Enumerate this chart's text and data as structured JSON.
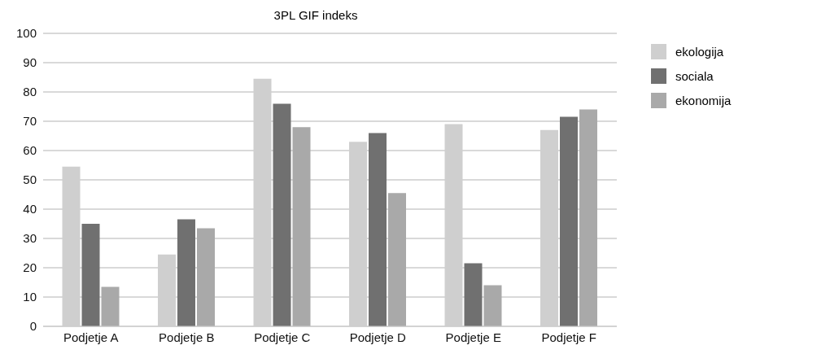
{
  "chart_data": {
    "type": "bar",
    "title": "3PL GIF indeks",
    "categories": [
      "Podjetje A",
      "Podjetje B",
      "Podjetje C",
      "Podjetje D",
      "Podjetje E",
      "Podjetje F"
    ],
    "series": [
      {
        "name": "ekologija",
        "color": "#cfcfcf",
        "values": [
          54.5,
          24.5,
          84.5,
          63,
          69,
          67
        ]
      },
      {
        "name": "sociala",
        "color": "#707070",
        "values": [
          35,
          36.5,
          76,
          66,
          21.5,
          71.5
        ]
      },
      {
        "name": "ekonomija",
        "color": "#a9a9a9",
        "values": [
          13.5,
          33.5,
          68,
          45.5,
          14,
          74
        ]
      }
    ],
    "ylim": [
      0,
      100
    ],
    "yticks": [
      0,
      10,
      20,
      30,
      40,
      50,
      60,
      70,
      80,
      90,
      100
    ],
    "grid": "y",
    "legend": "top right"
  }
}
